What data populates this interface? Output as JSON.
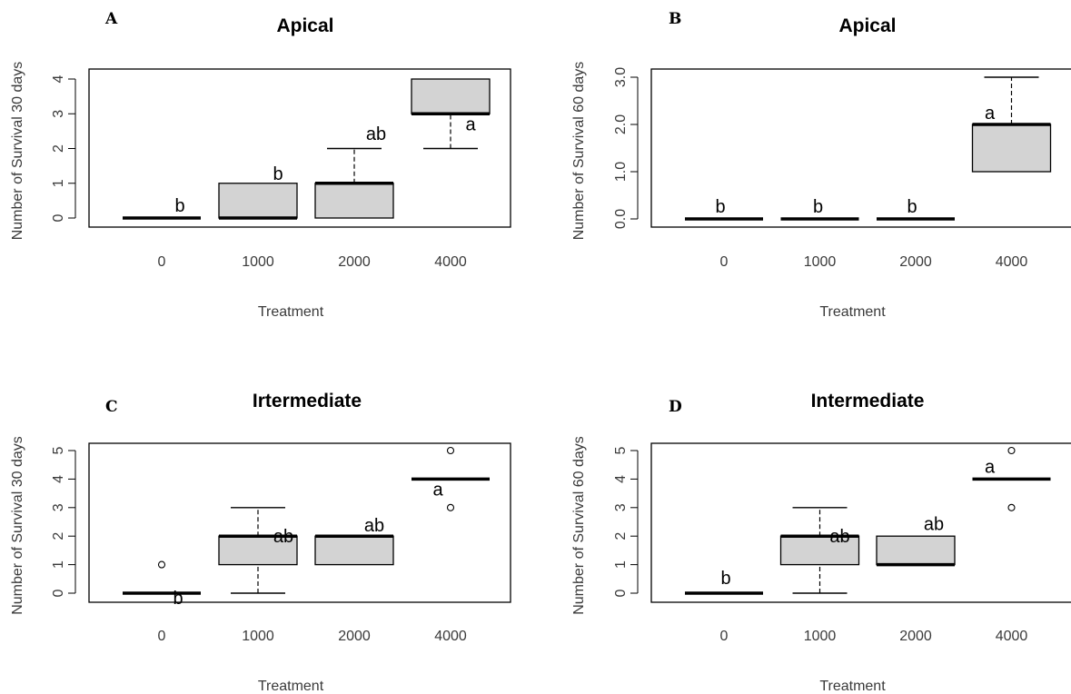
{
  "chart_data": [
    {
      "panel": "A",
      "type": "box",
      "title": "Apical",
      "xlabel": "Treatment",
      "ylabel": "Number of Survival 30 days",
      "categories": [
        "0",
        "1000",
        "2000",
        "4000"
      ],
      "ylim": [
        0,
        4
      ],
      "yticks": [
        "0",
        "1",
        "2",
        "3",
        "4"
      ],
      "boxes": [
        {
          "min": 0,
          "q1": 0,
          "median": 0,
          "q3": 0,
          "max": 0,
          "outliers": [],
          "label": "b"
        },
        {
          "min": 0,
          "q1": 0,
          "median": 0,
          "q3": 1,
          "max": 1,
          "outliers": [],
          "label": "b"
        },
        {
          "min": 0,
          "q1": 0,
          "median": 1,
          "q3": 1,
          "max": 2,
          "outliers": [],
          "label": "ab"
        },
        {
          "min": 2,
          "q1": 3,
          "median": 3,
          "q3": 4,
          "max": 4,
          "outliers": [],
          "label": "a"
        }
      ]
    },
    {
      "panel": "B",
      "type": "box",
      "title": "Apical",
      "xlabel": "Treatment",
      "ylabel": "Number of Survival 60 days",
      "categories": [
        "0",
        "1000",
        "2000",
        "4000"
      ],
      "ylim": [
        0,
        3
      ],
      "yticks": [
        "0.0",
        "1.0",
        "2.0",
        "3.0"
      ],
      "boxes": [
        {
          "min": 0,
          "q1": 0,
          "median": 0,
          "q3": 0,
          "max": 0,
          "outliers": [],
          "label": "b"
        },
        {
          "min": 0,
          "q1": 0,
          "median": 0,
          "q3": 0,
          "max": 0,
          "outliers": [],
          "label": "b"
        },
        {
          "min": 0,
          "q1": 0,
          "median": 0,
          "q3": 0,
          "max": 0,
          "outliers": [],
          "label": "b"
        },
        {
          "min": 1,
          "q1": 1,
          "median": 2,
          "q3": 2,
          "max": 3,
          "outliers": [],
          "label": "a"
        }
      ]
    },
    {
      "panel": "C",
      "type": "box",
      "title": "Irtermediate",
      "xlabel": "Treatment",
      "ylabel": "Number of Survival 30 days",
      "categories": [
        "0",
        "1000",
        "2000",
        "4000"
      ],
      "ylim": [
        0,
        5
      ],
      "yticks": [
        "0",
        "1",
        "2",
        "3",
        "4",
        "5"
      ],
      "boxes": [
        {
          "min": 0,
          "q1": 0,
          "median": 0,
          "q3": 0,
          "max": 0,
          "outliers": [
            1
          ],
          "label": "b"
        },
        {
          "min": 0,
          "q1": 1,
          "median": 2,
          "q3": 2,
          "max": 3,
          "outliers": [],
          "label": "ab"
        },
        {
          "min": 1,
          "q1": 1,
          "median": 2,
          "q3": 2,
          "max": 2,
          "outliers": [],
          "label": "ab"
        },
        {
          "min": 4,
          "q1": 4,
          "median": 4,
          "q3": 4,
          "max": 4,
          "outliers": [
            5,
            3
          ],
          "label": "a"
        }
      ]
    },
    {
      "panel": "D",
      "type": "box",
      "title": "Intermediate",
      "xlabel": "Treatment",
      "ylabel": "Number of Survival 60 days",
      "categories": [
        "0",
        "1000",
        "2000",
        "4000"
      ],
      "ylim": [
        0,
        5
      ],
      "yticks": [
        "0",
        "1",
        "2",
        "3",
        "4",
        "5"
      ],
      "boxes": [
        {
          "min": 0,
          "q1": 0,
          "median": 0,
          "q3": 0,
          "max": 0,
          "outliers": [],
          "label": "b"
        },
        {
          "min": 0,
          "q1": 1,
          "median": 2,
          "q3": 2,
          "max": 3,
          "outliers": [],
          "label": "ab"
        },
        {
          "min": 1,
          "q1": 1,
          "median": 1,
          "q3": 2,
          "max": 2,
          "outliers": [],
          "label": "ab"
        },
        {
          "min": 4,
          "q1": 4,
          "median": 4,
          "q3": 4,
          "max": 4,
          "outliers": [
            5,
            3
          ],
          "label": "a"
        }
      ]
    }
  ]
}
